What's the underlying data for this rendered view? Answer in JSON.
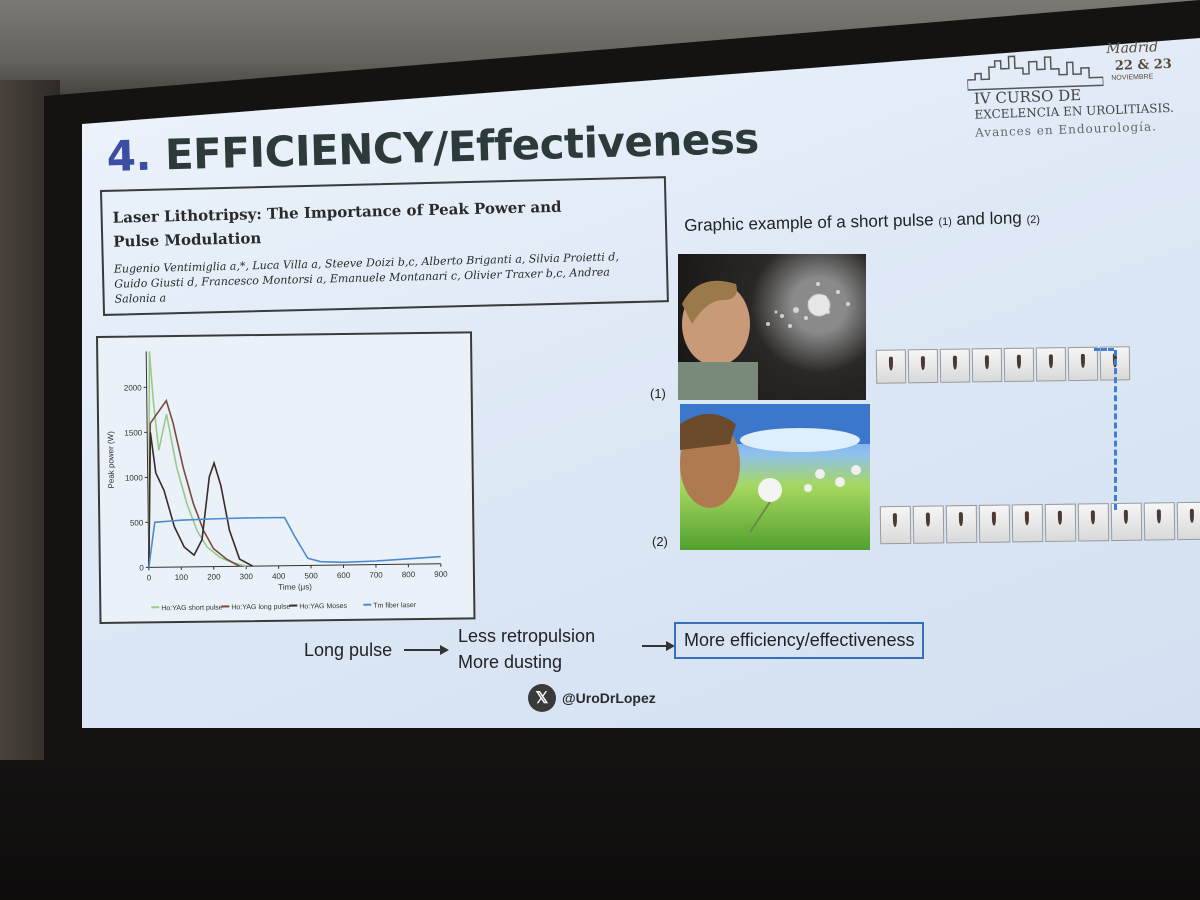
{
  "slide": {
    "title_number": "4.",
    "title_text": "EFFICIENCY/Effectiveness",
    "paper": {
      "title": "Laser Lithotripsy: The Importance of Peak Power and Pulse Modulation",
      "authors": "Eugenio Ventimiglia a,*, Luca Villa a, Steeve Doizi b,c, Alberto Briganti a, Silvia Proietti d, Guido Giusti d, Francesco Montorsi a, Emanuele Montanari c, Olivier Traxer b,c, Andrea Salonia a"
    },
    "right_heading": {
      "main": "Graphic example of a short pulse ",
      "short_tag": "(1)",
      "middle": " and long ",
      "long_tag": "(2)"
    },
    "label_1": "(1)",
    "label_2": "(2)",
    "flow": {
      "start": "Long pulse",
      "mid_1": "Less retropulsion",
      "mid_2": "More dusting",
      "result": "More efficiency/effectiveness"
    },
    "handle": "@UroDrLopez",
    "x_icon": "x-logo-icon",
    "logo": {
      "city": "Madrid",
      "dates": "22 & 23",
      "month": "NOVIEMBRE",
      "line1": "IV CURSO DE",
      "line2": "EXCELENCIA EN UROLITIASIS.",
      "line3": "Avances en Endourología."
    }
  },
  "chart_data": {
    "type": "line",
    "xlabel": "Time (μs)",
    "ylabel": "Peak power (W)",
    "xlim": [
      0,
      900
    ],
    "ylim": [
      0,
      2400
    ],
    "xticks": [
      0,
      100,
      200,
      300,
      400,
      500,
      600,
      700,
      800,
      900
    ],
    "yticks": [
      0,
      500,
      1000,
      1500,
      2000
    ],
    "legend_position": "bottom",
    "series": [
      {
        "name": "Ho:YAG short pulse",
        "color": "#9cc98a",
        "x": [
          0,
          10,
          20,
          35,
          60,
          90,
          120,
          150,
          180,
          220,
          260,
          300
        ],
        "y": [
          0,
          2400,
          1850,
          1300,
          1700,
          1100,
          700,
          400,
          220,
          100,
          40,
          0
        ]
      },
      {
        "name": "Ho:YAG long pulse",
        "color": "#7a4a3a",
        "x": [
          0,
          10,
          20,
          40,
          60,
          80,
          110,
          140,
          170,
          200,
          240,
          280
        ],
        "y": [
          0,
          1600,
          1650,
          1750,
          1850,
          1600,
          1100,
          700,
          400,
          200,
          80,
          0
        ]
      },
      {
        "name": "Ho:YAG Moses",
        "color": "#3a2a2a",
        "x": [
          0,
          10,
          25,
          50,
          80,
          110,
          140,
          165,
          190,
          205,
          225,
          250,
          280,
          320
        ],
        "y": [
          0,
          1500,
          1050,
          850,
          450,
          220,
          130,
          300,
          1000,
          1150,
          900,
          400,
          80,
          0
        ]
      },
      {
        "name": "Tm fiber laser",
        "color": "#4a8ad0",
        "x": [
          0,
          20,
          60,
          100,
          200,
          300,
          420,
          450,
          490,
          530,
          600,
          700,
          800,
          900
        ],
        "y": [
          0,
          500,
          510,
          520,
          530,
          535,
          535,
          330,
          80,
          40,
          30,
          40,
          60,
          80
        ]
      }
    ]
  }
}
